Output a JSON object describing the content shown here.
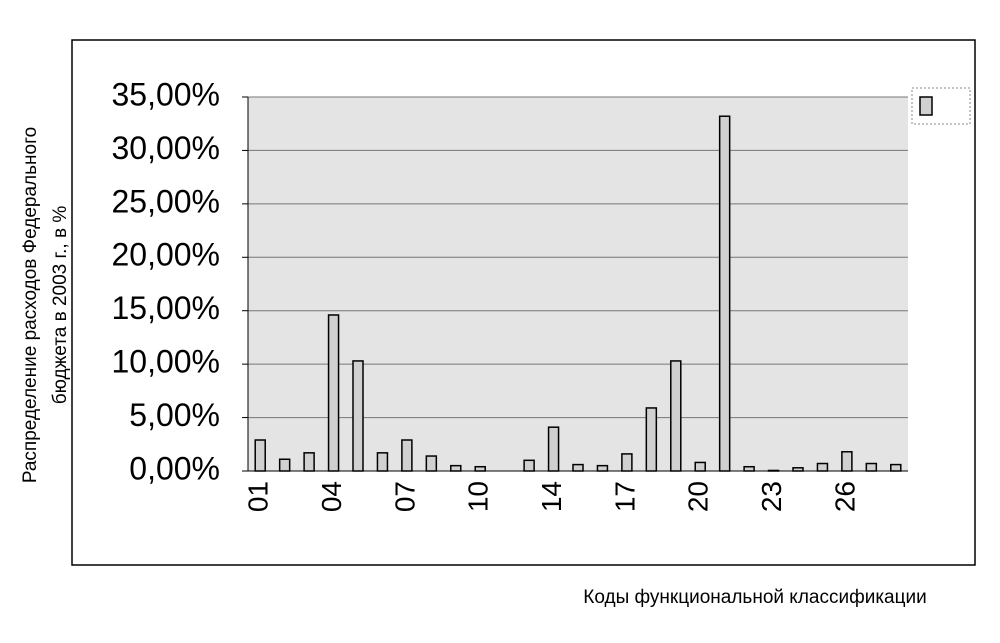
{
  "chart_data": {
    "type": "bar",
    "ylabel": [
      "Распределение расходов Федерального",
      "бюджета в 2003 г., в %"
    ],
    "xlabel": "Коды функциональной классификации",
    "categories": [
      "01",
      null,
      null,
      "04",
      null,
      null,
      "07",
      null,
      null,
      "10",
      null,
      null,
      "14",
      null,
      null,
      "17",
      null,
      null,
      "20",
      null,
      null,
      "23",
      null,
      null,
      "26",
      null,
      null
    ],
    "values": [
      2.9,
      1.1,
      1.7,
      14.6,
      10.3,
      1.7,
      2.9,
      1.4,
      0.5,
      0.4,
      0,
      1.0,
      4.1,
      0.6,
      0.5,
      1.6,
      5.9,
      10.3,
      0.8,
      33.2,
      0.4,
      0.05,
      0.3,
      0.7,
      1.8,
      0.7,
      0.6
    ],
    "color": "#d0d0d0",
    "ylim": [
      0,
      35
    ],
    "yticks": [
      {
        "value": 0,
        "label": "0,00%"
      },
      {
        "value": 5,
        "label": "5,00%"
      },
      {
        "value": 10,
        "label": "10,00%"
      },
      {
        "value": 15,
        "label": "15,00%"
      },
      {
        "value": 20,
        "label": "20,00%"
      },
      {
        "value": 25,
        "label": "25,00%"
      },
      {
        "value": 30,
        "label": "30,00%"
      },
      {
        "value": 35,
        "label": "35,00%"
      }
    ],
    "grid": true,
    "legend": "top-right"
  }
}
